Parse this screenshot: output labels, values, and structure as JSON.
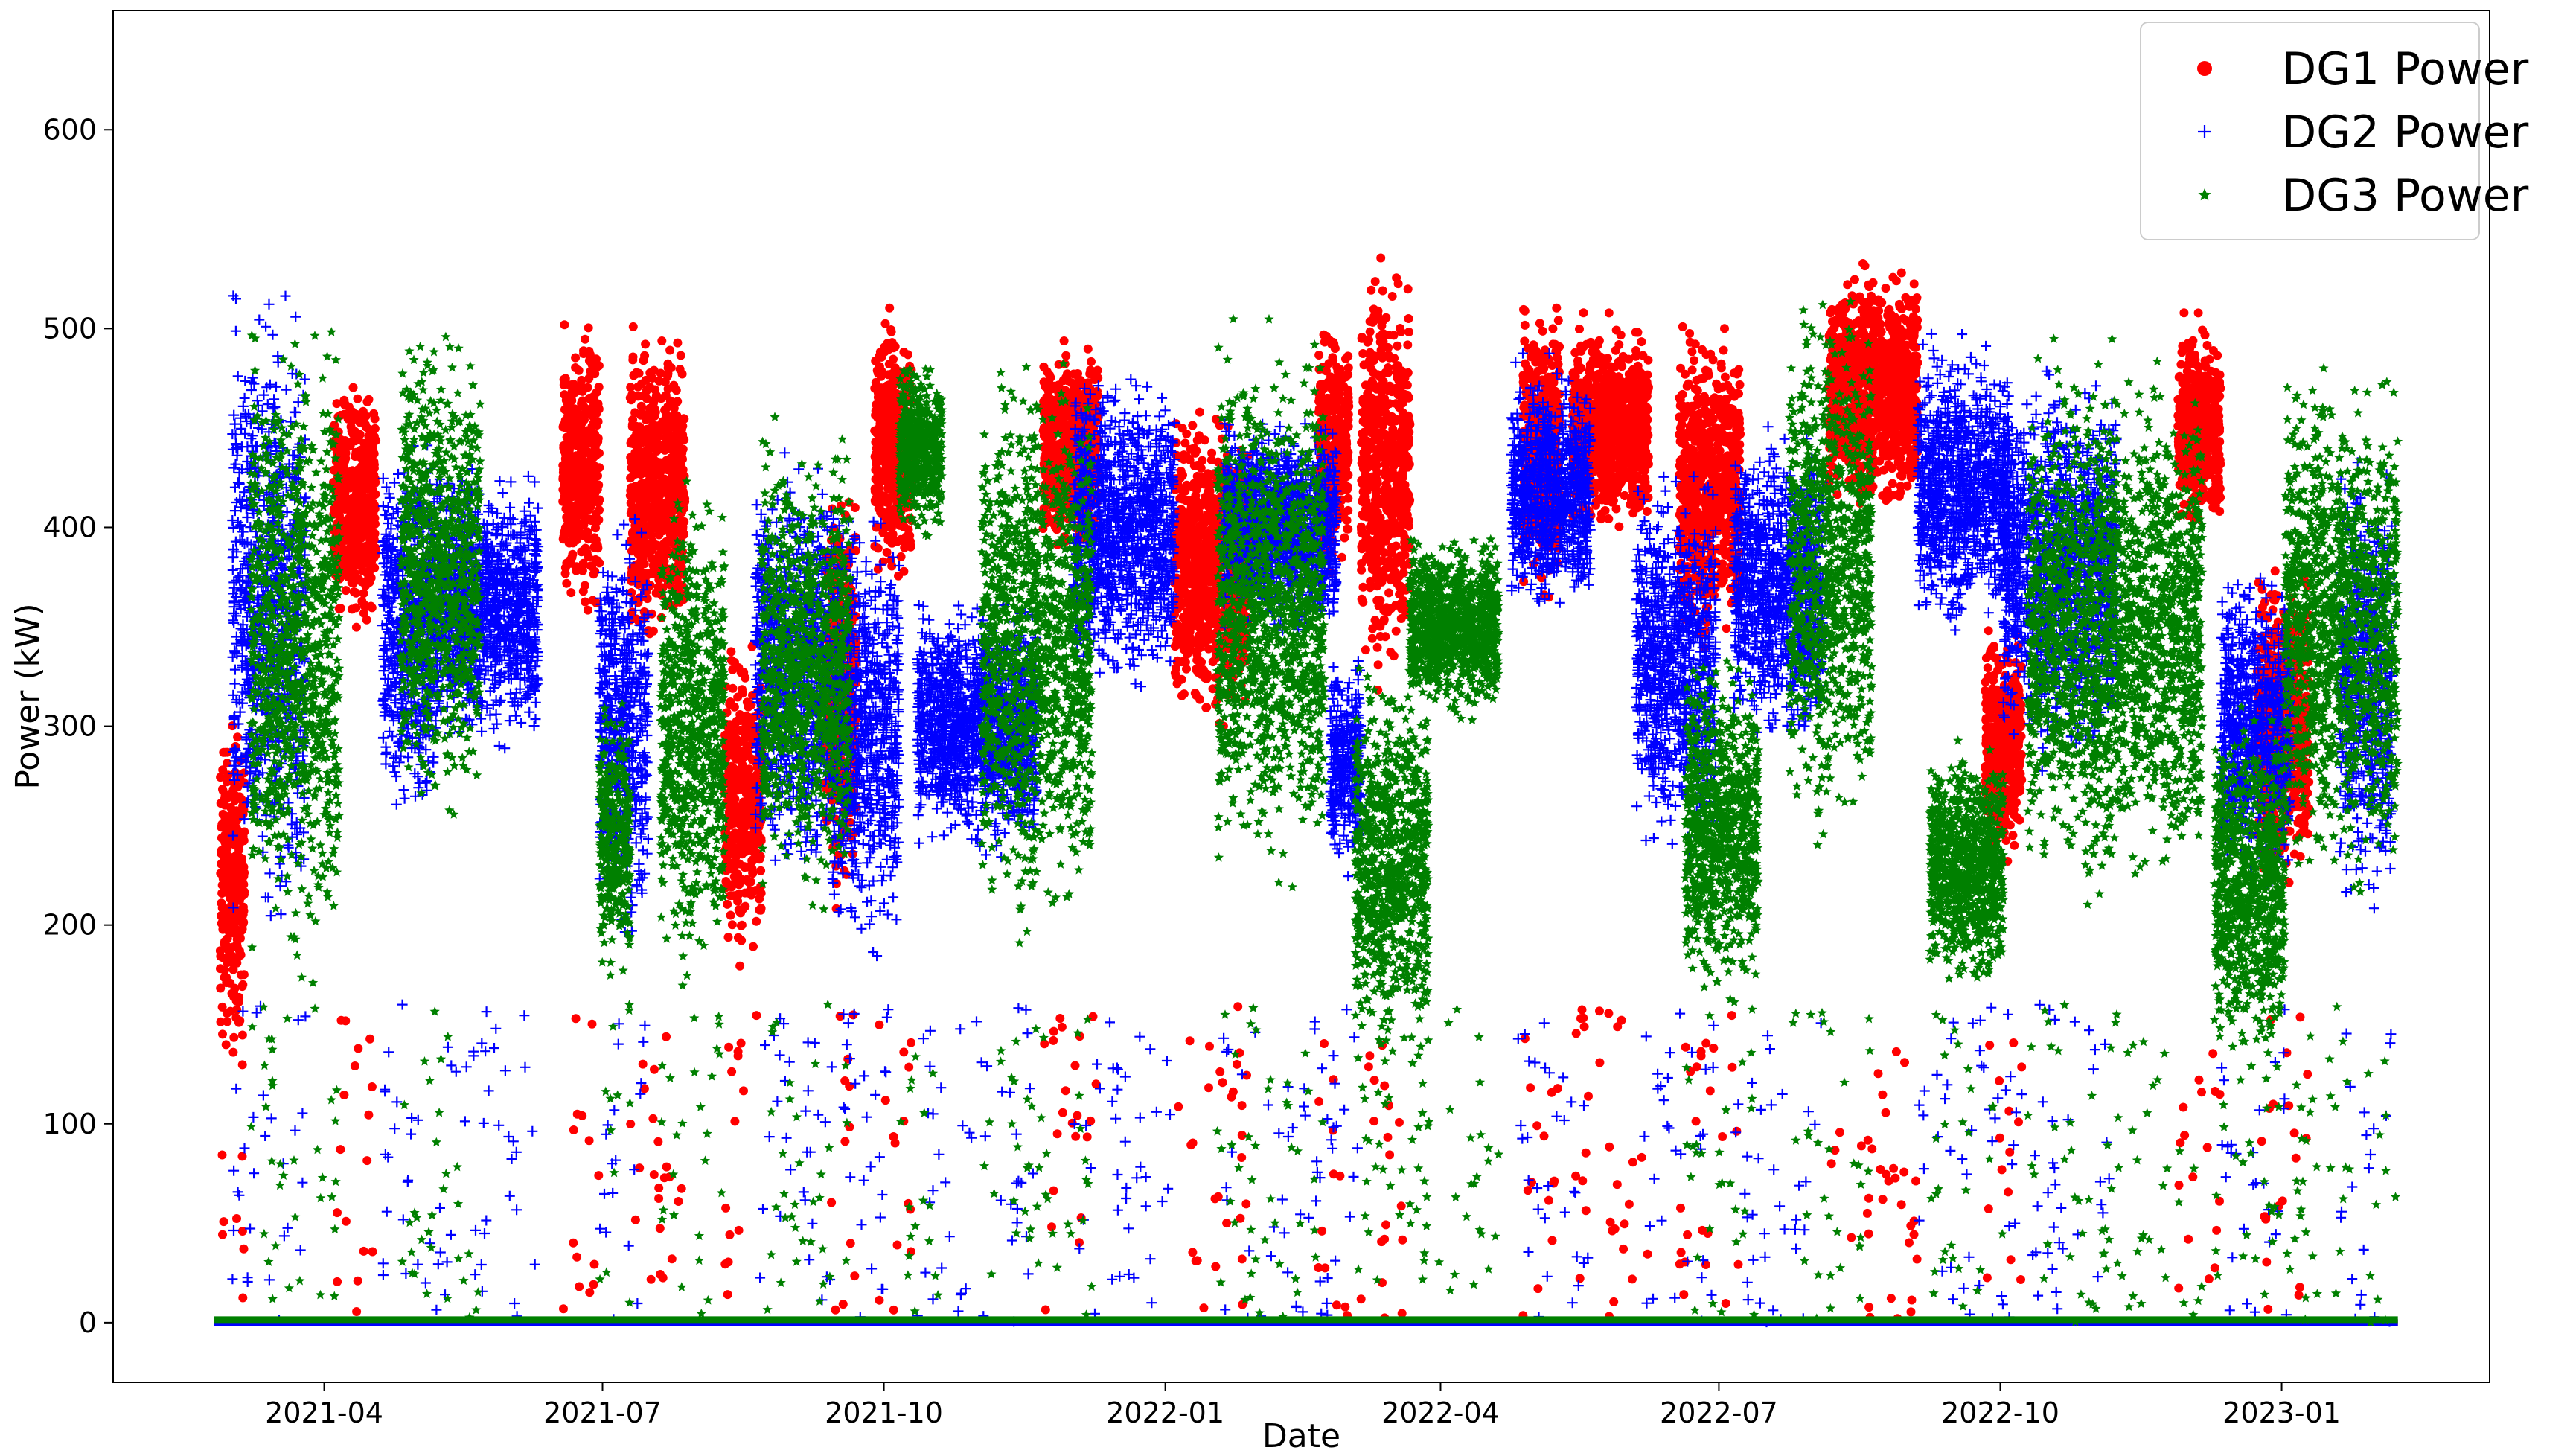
{
  "chart_data": {
    "type": "scatter",
    "title": "",
    "xlabel": "Date",
    "ylabel": "Power (kW)",
    "x_ticks": [
      "2021-04",
      "2021-07",
      "2021-10",
      "2022-01",
      "2022-04",
      "2022-07",
      "2022-10",
      "2023-01"
    ],
    "y_ticks": [
      0,
      100,
      200,
      300,
      400,
      500,
      600
    ],
    "xlim": [
      "2021-01-22",
      "2023-03-10"
    ],
    "ylim": [
      -30,
      660
    ],
    "grid": false,
    "legend_position": "top-right",
    "series": [
      {
        "name": "DG1 Power",
        "color": "#ff0000",
        "marker": "circle",
        "segments": [
          {
            "start": "2021-02-26",
            "end": "2021-03-06",
            "center": 220,
            "spread": 100
          },
          {
            "start": "2021-04-04",
            "end": "2021-04-18",
            "center": 410,
            "spread": 70
          },
          {
            "start": "2021-06-18",
            "end": "2021-06-30",
            "center": 430,
            "spread": 80
          },
          {
            "start": "2021-07-10",
            "end": "2021-07-28",
            "center": 420,
            "spread": 90
          },
          {
            "start": "2021-08-10",
            "end": "2021-08-22",
            "center": 260,
            "spread": 90
          },
          {
            "start": "2021-09-12",
            "end": "2021-09-22",
            "center": 320,
            "spread": 120
          },
          {
            "start": "2021-09-28",
            "end": "2021-10-10",
            "center": 440,
            "spread": 80
          },
          {
            "start": "2021-11-22",
            "end": "2021-12-10",
            "center": 440,
            "spread": 60
          },
          {
            "start": "2022-01-04",
            "end": "2022-01-28",
            "center": 380,
            "spread": 90
          },
          {
            "start": "2022-02-20",
            "end": "2022-03-02",
            "center": 440,
            "spread": 70
          },
          {
            "start": "2022-03-06",
            "end": "2022-03-22",
            "center": 430,
            "spread": 120
          },
          {
            "start": "2022-04-28",
            "end": "2022-05-10",
            "center": 440,
            "spread": 80
          },
          {
            "start": "2022-05-14",
            "end": "2022-06-08",
            "center": 450,
            "spread": 60
          },
          {
            "start": "2022-06-18",
            "end": "2022-07-08",
            "center": 420,
            "spread": 90
          },
          {
            "start": "2022-08-06",
            "end": "2022-09-04",
            "center": 470,
            "spread": 70
          },
          {
            "start": "2022-09-26",
            "end": "2022-10-08",
            "center": 290,
            "spread": 70
          },
          {
            "start": "2022-11-28",
            "end": "2022-12-12",
            "center": 450,
            "spread": 60
          },
          {
            "start": "2022-12-24",
            "end": "2023-01-10",
            "center": 300,
            "spread": 90
          }
        ]
      },
      {
        "name": "DG2 Power",
        "color": "#0000ff",
        "marker": "plus",
        "segments": [
          {
            "start": "2021-03-02",
            "end": "2021-03-26",
            "center": 360,
            "spread": 180
          },
          {
            "start": "2021-04-20",
            "end": "2021-05-08",
            "center": 350,
            "spread": 110
          },
          {
            "start": "2021-05-08",
            "end": "2021-06-10",
            "center": 360,
            "spread": 80
          },
          {
            "start": "2021-06-30",
            "end": "2021-07-16",
            "center": 300,
            "spread": 120
          },
          {
            "start": "2021-08-20",
            "end": "2021-09-14",
            "center": 330,
            "spread": 120
          },
          {
            "start": "2021-09-14",
            "end": "2021-10-06",
            "center": 300,
            "spread": 130
          },
          {
            "start": "2021-10-12",
            "end": "2021-11-20",
            "center": 300,
            "spread": 70
          },
          {
            "start": "2021-12-02",
            "end": "2022-01-04",
            "center": 400,
            "spread": 90
          },
          {
            "start": "2022-01-20",
            "end": "2022-02-26",
            "center": 400,
            "spread": 60
          },
          {
            "start": "2022-02-24",
            "end": "2022-03-06",
            "center": 280,
            "spread": 60
          },
          {
            "start": "2022-04-24",
            "end": "2022-05-20",
            "center": 420,
            "spread": 70
          },
          {
            "start": "2022-06-04",
            "end": "2022-06-30",
            "center": 330,
            "spread": 110
          },
          {
            "start": "2022-07-06",
            "end": "2022-08-04",
            "center": 370,
            "spread": 90
          },
          {
            "start": "2022-09-04",
            "end": "2022-10-04",
            "center": 420,
            "spread": 80
          },
          {
            "start": "2022-10-02",
            "end": "2022-11-08",
            "center": 380,
            "spread": 110
          },
          {
            "start": "2022-12-12",
            "end": "2023-01-04",
            "center": 300,
            "spread": 90
          },
          {
            "start": "2023-01-20",
            "end": "2023-02-06",
            "center": 320,
            "spread": 130
          }
        ]
      },
      {
        "name": "DG3 Power",
        "color": "#008000",
        "marker": "star",
        "segments": [
          {
            "start": "2021-03-08",
            "end": "2021-04-06",
            "center": 340,
            "spread": 180
          },
          {
            "start": "2021-04-26",
            "end": "2021-05-22",
            "center": 380,
            "spread": 140
          },
          {
            "start": "2021-06-30",
            "end": "2021-07-10",
            "center": 240,
            "spread": 80
          },
          {
            "start": "2021-07-20",
            "end": "2021-08-10",
            "center": 300,
            "spread": 140
          },
          {
            "start": "2021-08-22",
            "end": "2021-09-20",
            "center": 330,
            "spread": 130
          },
          {
            "start": "2021-10-06",
            "end": "2021-10-20",
            "center": 440,
            "spread": 50
          },
          {
            "start": "2021-11-02",
            "end": "2021-12-08",
            "center": 340,
            "spread": 160
          },
          {
            "start": "2022-01-18",
            "end": "2022-02-22",
            "center": 360,
            "spread": 150
          },
          {
            "start": "2022-03-04",
            "end": "2022-03-28",
            "center": 230,
            "spread": 110
          },
          {
            "start": "2022-03-22",
            "end": "2022-04-20",
            "center": 350,
            "spread": 50
          },
          {
            "start": "2022-06-20",
            "end": "2022-07-14",
            "center": 250,
            "spread": 100
          },
          {
            "start": "2022-07-24",
            "end": "2022-08-20",
            "center": 380,
            "spread": 150
          },
          {
            "start": "2022-09-08",
            "end": "2022-10-02",
            "center": 230,
            "spread": 70
          },
          {
            "start": "2022-10-10",
            "end": "2022-12-06",
            "center": 350,
            "spread": 150
          },
          {
            "start": "2022-12-10",
            "end": "2023-01-02",
            "center": 220,
            "spread": 100
          },
          {
            "start": "2023-01-02",
            "end": "2023-02-08",
            "center": 350,
            "spread": 150
          }
        ]
      }
    ]
  }
}
